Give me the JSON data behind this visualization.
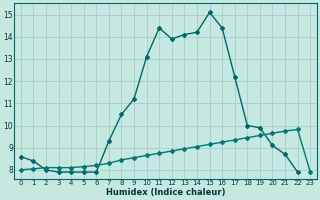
{
  "xlabel": "Humidex (Indice chaleur)",
  "ylabel": "",
  "bg_color": "#c5e8e0",
  "grid_color": "#a8ccc8",
  "line_color": "#006868",
  "line2_color": "#007878",
  "xlim_min": -0.5,
  "xlim_max": 23.5,
  "ylim_min": 7.6,
  "ylim_max": 15.5,
  "xticks": [
    0,
    1,
    2,
    3,
    4,
    5,
    6,
    7,
    8,
    9,
    10,
    11,
    12,
    13,
    14,
    15,
    16,
    17,
    18,
    19,
    20,
    21,
    22,
    23
  ],
  "yticks": [
    8,
    9,
    10,
    11,
    12,
    13,
    14,
    15
  ],
  "curve1_x": [
    0,
    1,
    2,
    3,
    4,
    5,
    6,
    7,
    8,
    9,
    10,
    11,
    12,
    13,
    14,
    15,
    16,
    17,
    18,
    19,
    20,
    21,
    22
  ],
  "curve1_y": [
    8.6,
    8.4,
    8.0,
    7.9,
    7.9,
    7.9,
    7.9,
    9.3,
    10.5,
    11.2,
    13.1,
    14.4,
    13.9,
    14.1,
    14.2,
    15.1,
    14.4,
    12.2,
    10.0,
    9.9,
    9.1,
    8.7,
    7.9
  ],
  "curve2_x": [
    0,
    1,
    2,
    3,
    4,
    5,
    6,
    7,
    8,
    9,
    10,
    11,
    12,
    13,
    14,
    15,
    16,
    17,
    18,
    19,
    20,
    21,
    22,
    23
  ],
  "curve2_y": [
    8.0,
    8.05,
    8.1,
    8.1,
    8.1,
    8.15,
    8.2,
    8.3,
    8.45,
    8.55,
    8.65,
    8.75,
    8.85,
    8.95,
    9.05,
    9.15,
    9.25,
    9.35,
    9.45,
    9.55,
    9.65,
    9.75,
    9.82,
    7.9
  ],
  "xlabel_fontsize": 6,
  "tick_fontsize": 5,
  "xlabel_bold": true
}
